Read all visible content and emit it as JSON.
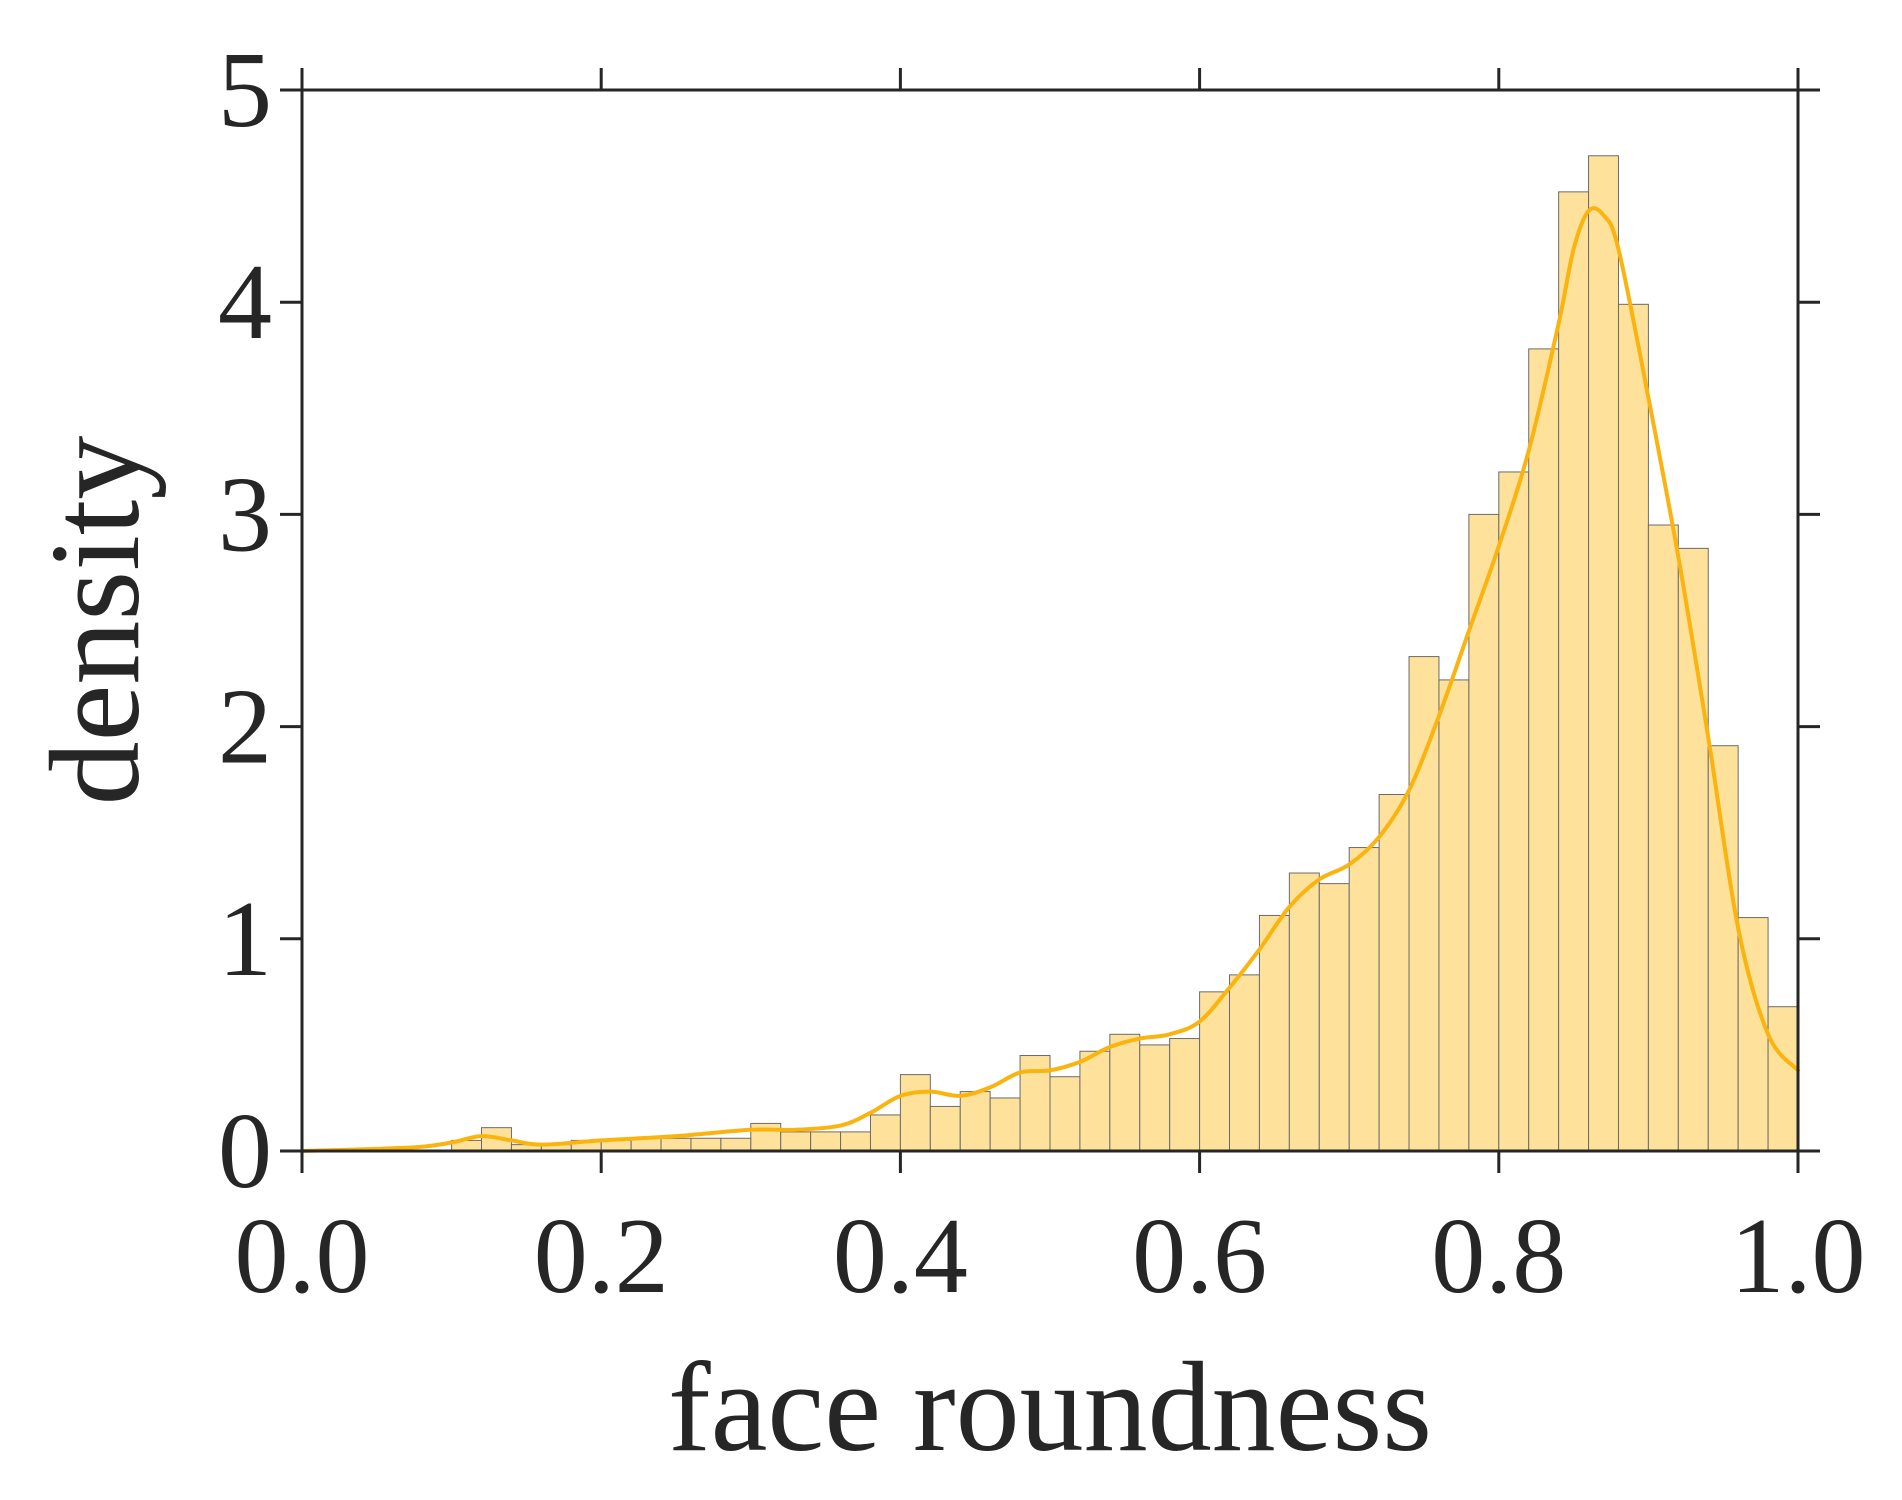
{
  "chart_data": {
    "type": "bar",
    "subtype": "histogram-with-kde",
    "xlabel": "face roundness",
    "ylabel": "density",
    "xlim": [
      0.0,
      1.0
    ],
    "ylim": [
      0,
      5
    ],
    "x_ticks": [
      "0.0",
      "0.2",
      "0.4",
      "0.6",
      "0.8",
      "1.0"
    ],
    "y_ticks": [
      "0",
      "1",
      "2",
      "3",
      "4",
      "5"
    ],
    "grid": false,
    "bar_color": "#fee29b",
    "bar_edge_color": "#6b6b6b",
    "line_color": "#fbb40f",
    "bins": {
      "start": 0.0,
      "width": 0.02,
      "values": [
        0.0,
        0.0,
        0.0,
        0.0,
        0.0,
        0.05,
        0.11,
        0.03,
        0.03,
        0.05,
        0.05,
        0.06,
        0.06,
        0.06,
        0.06,
        0.13,
        0.09,
        0.09,
        0.09,
        0.17,
        0.36,
        0.21,
        0.28,
        0.25,
        0.45,
        0.35,
        0.47,
        0.55,
        0.5,
        0.53,
        0.75,
        0.83,
        1.11,
        1.31,
        1.26,
        1.43,
        1.68,
        2.33,
        2.22,
        3.0,
        3.2,
        3.78,
        4.52,
        4.69,
        3.99,
        2.95,
        2.84,
        1.91,
        1.1,
        0.68
      ]
    },
    "kde": {
      "x": [
        0.0,
        0.05,
        0.08,
        0.1,
        0.12,
        0.14,
        0.16,
        0.2,
        0.25,
        0.3,
        0.33,
        0.36,
        0.38,
        0.4,
        0.42,
        0.44,
        0.46,
        0.48,
        0.5,
        0.52,
        0.54,
        0.56,
        0.58,
        0.6,
        0.62,
        0.64,
        0.66,
        0.68,
        0.7,
        0.72,
        0.74,
        0.76,
        0.78,
        0.8,
        0.82,
        0.84,
        0.85,
        0.86,
        0.87,
        0.88,
        0.9,
        0.92,
        0.94,
        0.96,
        0.98,
        1.0
      ],
      "y": [
        0.0,
        0.01,
        0.02,
        0.04,
        0.07,
        0.05,
        0.03,
        0.05,
        0.07,
        0.1,
        0.1,
        0.12,
        0.18,
        0.26,
        0.28,
        0.26,
        0.3,
        0.37,
        0.38,
        0.42,
        0.49,
        0.53,
        0.55,
        0.61,
        0.77,
        0.95,
        1.15,
        1.28,
        1.35,
        1.48,
        1.7,
        2.05,
        2.45,
        2.85,
        3.3,
        3.9,
        4.25,
        4.43,
        4.41,
        4.25,
        3.55,
        2.8,
        1.95,
        1.05,
        0.55,
        0.38
      ]
    }
  }
}
